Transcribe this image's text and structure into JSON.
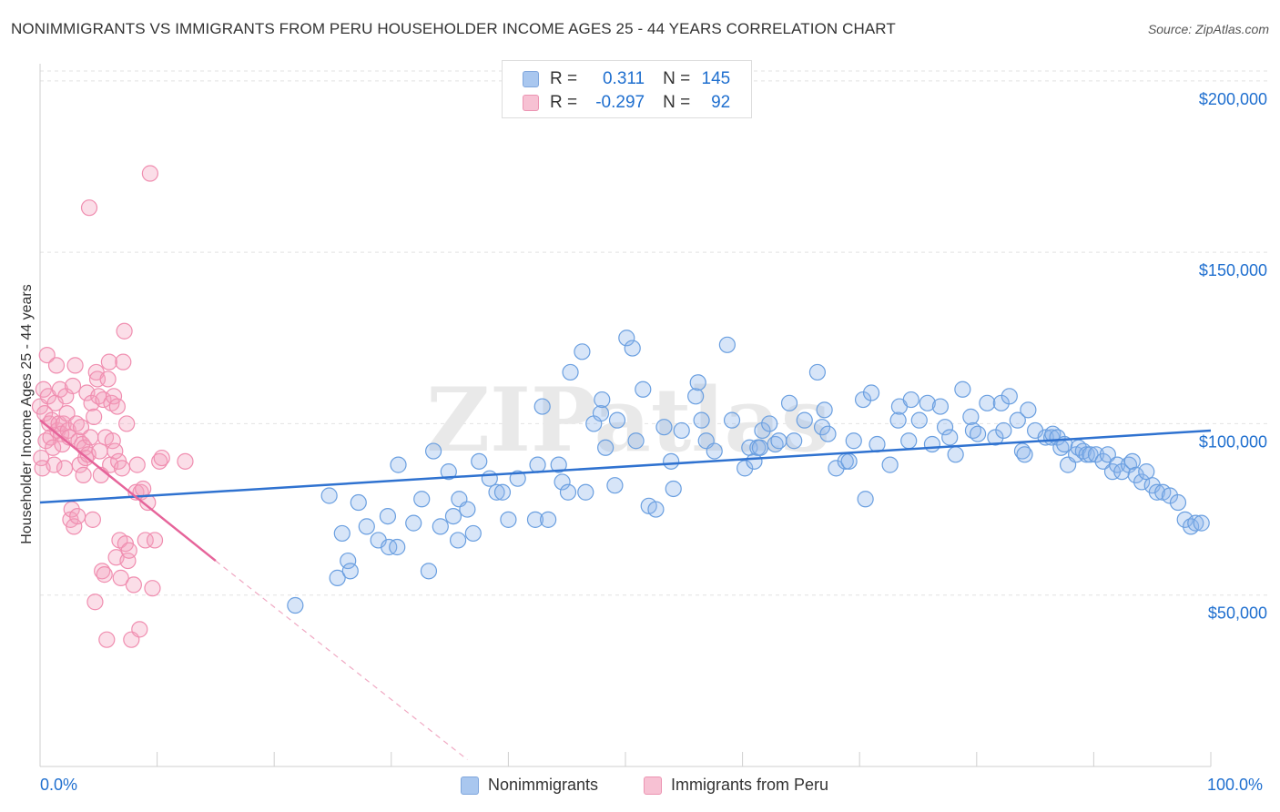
{
  "title": "NONIMMIGRANTS VS IMMIGRANTS FROM PERU HOUSEHOLDER INCOME AGES 25 - 44 YEARS CORRELATION CHART",
  "source": "Source: ZipAtlas.com",
  "watermark": "ZIPatlas",
  "colors": {
    "blue": "#6a9fe0",
    "blue_line": "#2f72d0",
    "pink": "#f08eb0",
    "pink_line": "#e6649a",
    "axis_text": "#1f6fcf"
  },
  "legend_top": {
    "rows": [
      {
        "r_label": "R =",
        "r_value": "0.311",
        "n_label": "N =",
        "n_value": "145"
      },
      {
        "r_label": "R =",
        "r_value": "-0.297",
        "n_label": "N =",
        "n_value": "92"
      }
    ]
  },
  "legend_bottom": {
    "items": [
      {
        "label": "Nonimmigrants"
      },
      {
        "label": "Immigrants from Peru"
      }
    ]
  },
  "x_tick_labels": {
    "left": "0.0%",
    "right": "100.0%"
  },
  "chart_data": {
    "type": "scatter",
    "title": "NONIMMIGRANTS VS IMMIGRANTS FROM PERU HOUSEHOLDER INCOME AGES 25 - 44 YEARS CORRELATION CHART",
    "xlabel": "",
    "ylabel": "Householder Income Ages 25 - 44 years",
    "xlim": [
      0,
      100
    ],
    "ylim": [
      0,
      205000
    ],
    "y_ticks": [
      {
        "value": 50000,
        "label": "$50,000"
      },
      {
        "value": 100000,
        "label": "$100,000"
      },
      {
        "value": 150000,
        "label": "$150,000"
      },
      {
        "value": 200000,
        "label": "$200,000"
      }
    ],
    "grid": true,
    "series": [
      {
        "name": "Nonimmigrants",
        "color": "#6a9fe0",
        "trend": {
          "x0": 0,
          "y0": 77000,
          "x1": 100,
          "y1": 98000
        },
        "points": [
          [
            21.8,
            47000
          ],
          [
            24.7,
            79000
          ],
          [
            25.4,
            55000
          ],
          [
            25.8,
            68000
          ],
          [
            26.3,
            60000
          ],
          [
            26.5,
            57000
          ],
          [
            27.2,
            77000
          ],
          [
            27.9,
            70000
          ],
          [
            28.9,
            66000
          ],
          [
            29.7,
            73000
          ],
          [
            29.8,
            64000
          ],
          [
            30.5,
            64000
          ],
          [
            30.6,
            88000
          ],
          [
            31.9,
            71000
          ],
          [
            32.6,
            78000
          ],
          [
            33.2,
            57000
          ],
          [
            33.6,
            92000
          ],
          [
            34.2,
            70000
          ],
          [
            34.9,
            86000
          ],
          [
            35.3,
            73000
          ],
          [
            35.7,
            66000
          ],
          [
            35.8,
            78000
          ],
          [
            36.5,
            75000
          ],
          [
            37.0,
            68000
          ],
          [
            37.5,
            89000
          ],
          [
            38.4,
            84000
          ],
          [
            39.0,
            80000
          ],
          [
            39.5,
            80000
          ],
          [
            40.0,
            72000
          ],
          [
            40.8,
            84000
          ],
          [
            42.3,
            72000
          ],
          [
            42.5,
            88000
          ],
          [
            42.9,
            105000
          ],
          [
            43.4,
            72000
          ],
          [
            44.3,
            88000
          ],
          [
            44.6,
            83000
          ],
          [
            45.1,
            80000
          ],
          [
            45.3,
            115000
          ],
          [
            46.3,
            121000
          ],
          [
            46.6,
            80000
          ],
          [
            47.3,
            100000
          ],
          [
            47.9,
            103000
          ],
          [
            48.0,
            107000
          ],
          [
            48.3,
            93000
          ],
          [
            49.1,
            82000
          ],
          [
            49.3,
            101000
          ],
          [
            50.1,
            125000
          ],
          [
            50.6,
            122000
          ],
          [
            50.9,
            95000
          ],
          [
            51.5,
            110000
          ],
          [
            52.0,
            76000
          ],
          [
            52.6,
            75000
          ],
          [
            53.3,
            99000
          ],
          [
            53.9,
            89000
          ],
          [
            54.1,
            81000
          ],
          [
            54.8,
            98000
          ],
          [
            56.0,
            108000
          ],
          [
            56.2,
            112000
          ],
          [
            56.5,
            101000
          ],
          [
            56.9,
            95000
          ],
          [
            57.6,
            92000
          ],
          [
            58.7,
            123000
          ],
          [
            59.1,
            101000
          ],
          [
            60.2,
            87000
          ],
          [
            60.6,
            93000
          ],
          [
            61.0,
            89000
          ],
          [
            61.3,
            93000
          ],
          [
            61.5,
            93000
          ],
          [
            61.7,
            98000
          ],
          [
            62.3,
            100000
          ],
          [
            62.8,
            94000
          ],
          [
            63.1,
            95000
          ],
          [
            64.0,
            106000
          ],
          [
            64.4,
            95000
          ],
          [
            65.3,
            101000
          ],
          [
            66.4,
            115000
          ],
          [
            66.8,
            99000
          ],
          [
            67.0,
            104000
          ],
          [
            67.3,
            97000
          ],
          [
            68.0,
            87000
          ],
          [
            68.8,
            89000
          ],
          [
            69.1,
            89000
          ],
          [
            69.5,
            95000
          ],
          [
            70.3,
            107000
          ],
          [
            70.5,
            78000
          ],
          [
            71.0,
            109000
          ],
          [
            71.5,
            94000
          ],
          [
            72.6,
            88000
          ],
          [
            73.3,
            101000
          ],
          [
            73.4,
            105000
          ],
          [
            74.2,
            95000
          ],
          [
            74.4,
            107000
          ],
          [
            75.1,
            101000
          ],
          [
            75.8,
            106000
          ],
          [
            76.2,
            94000
          ],
          [
            76.9,
            105000
          ],
          [
            77.3,
            99000
          ],
          [
            77.7,
            96000
          ],
          [
            78.2,
            91000
          ],
          [
            78.8,
            110000
          ],
          [
            79.5,
            102000
          ],
          [
            79.7,
            98000
          ],
          [
            80.1,
            97000
          ],
          [
            80.9,
            106000
          ],
          [
            81.6,
            96000
          ],
          [
            82.1,
            106000
          ],
          [
            82.3,
            98000
          ],
          [
            82.8,
            108000
          ],
          [
            83.5,
            101000
          ],
          [
            83.9,
            92000
          ],
          [
            84.1,
            91000
          ],
          [
            84.4,
            104000
          ],
          [
            85.0,
            98000
          ],
          [
            85.9,
            96000
          ],
          [
            86.4,
            96000
          ],
          [
            86.5,
            97000
          ],
          [
            86.9,
            96000
          ],
          [
            87.2,
            93000
          ],
          [
            87.5,
            94000
          ],
          [
            87.8,
            88000
          ],
          [
            88.5,
            91000
          ],
          [
            88.7,
            93000
          ],
          [
            89.1,
            92000
          ],
          [
            89.4,
            91000
          ],
          [
            89.7,
            91000
          ],
          [
            90.2,
            91000
          ],
          [
            90.8,
            89000
          ],
          [
            91.2,
            91000
          ],
          [
            91.6,
            86000
          ],
          [
            92.0,
            88000
          ],
          [
            92.4,
            86000
          ],
          [
            93.0,
            88000
          ],
          [
            93.3,
            89000
          ],
          [
            93.6,
            85000
          ],
          [
            94.1,
            83000
          ],
          [
            94.5,
            86000
          ],
          [
            95.0,
            82000
          ],
          [
            95.4,
            80000
          ],
          [
            95.9,
            80000
          ],
          [
            96.5,
            79000
          ],
          [
            97.2,
            77000
          ],
          [
            97.8,
            72000
          ],
          [
            98.3,
            70000
          ],
          [
            98.7,
            71000
          ],
          [
            99.2,
            71000
          ]
        ]
      },
      {
        "name": "Immigrants from Peru",
        "color": "#f08eb0",
        "trend": {
          "x0": 0,
          "y0": 101000,
          "x1": 15,
          "y1": 60000,
          "dash_x1": 36.5,
          "dash_y1": 2000
        },
        "points": [
          [
            0.0,
            105000
          ],
          [
            0.1,
            90000
          ],
          [
            0.2,
            87000
          ],
          [
            0.3,
            110000
          ],
          [
            0.4,
            103000
          ],
          [
            0.5,
            95000
          ],
          [
            0.6,
            120000
          ],
          [
            0.7,
            108000
          ],
          [
            0.8,
            100000
          ],
          [
            0.9,
            96000
          ],
          [
            1.0,
            101000
          ],
          [
            1.1,
            93000
          ],
          [
            1.2,
            88000
          ],
          [
            1.3,
            106000
          ],
          [
            1.4,
            117000
          ],
          [
            1.5,
            98000
          ],
          [
            1.6,
            100000
          ],
          [
            1.7,
            110000
          ],
          [
            1.8,
            97000
          ],
          [
            1.9,
            94000
          ],
          [
            2.0,
            100000
          ],
          [
            2.1,
            87000
          ],
          [
            2.2,
            108000
          ],
          [
            2.3,
            103000
          ],
          [
            2.4,
            98000
          ],
          [
            2.5,
            96000
          ],
          [
            2.6,
            72000
          ],
          [
            2.7,
            75000
          ],
          [
            2.8,
            111000
          ],
          [
            2.9,
            70000
          ],
          [
            3.0,
            117000
          ],
          [
            3.1,
            100000
          ],
          [
            3.2,
            73000
          ],
          [
            3.3,
            95000
          ],
          [
            3.4,
            88000
          ],
          [
            3.5,
            99000
          ],
          [
            3.6,
            94000
          ],
          [
            3.7,
            85000
          ],
          [
            3.8,
            93000
          ],
          [
            3.9,
            90000
          ],
          [
            4.0,
            109000
          ],
          [
            4.1,
            91000
          ],
          [
            4.2,
            163000
          ],
          [
            4.3,
            96000
          ],
          [
            4.4,
            106000
          ],
          [
            4.5,
            72000
          ],
          [
            4.6,
            102000
          ],
          [
            4.7,
            48000
          ],
          [
            4.8,
            115000
          ],
          [
            4.9,
            113000
          ],
          [
            5.0,
            108000
          ],
          [
            5.1,
            92000
          ],
          [
            5.2,
            85000
          ],
          [
            5.3,
            57000
          ],
          [
            5.4,
            107000
          ],
          [
            5.5,
            56000
          ],
          [
            5.6,
            96000
          ],
          [
            5.7,
            37000
          ],
          [
            5.8,
            113000
          ],
          [
            5.9,
            118000
          ],
          [
            6.0,
            88000
          ],
          [
            6.1,
            106000
          ],
          [
            6.2,
            95000
          ],
          [
            6.3,
            108000
          ],
          [
            6.4,
            92000
          ],
          [
            6.5,
            61000
          ],
          [
            6.6,
            105000
          ],
          [
            6.7,
            89000
          ],
          [
            6.8,
            66000
          ],
          [
            6.9,
            55000
          ],
          [
            7.0,
            87000
          ],
          [
            7.1,
            118000
          ],
          [
            7.2,
            127000
          ],
          [
            7.3,
            65000
          ],
          [
            7.4,
            100000
          ],
          [
            7.5,
            60000
          ],
          [
            7.6,
            63000
          ],
          [
            7.8,
            37000
          ],
          [
            8.0,
            53000
          ],
          [
            8.2,
            80000
          ],
          [
            8.3,
            88000
          ],
          [
            8.5,
            40000
          ],
          [
            8.6,
            80000
          ],
          [
            8.8,
            81000
          ],
          [
            9.0,
            66000
          ],
          [
            9.2,
            77000
          ],
          [
            9.4,
            173000
          ],
          [
            9.6,
            52000
          ],
          [
            9.8,
            66000
          ],
          [
            10.2,
            89000
          ],
          [
            10.4,
            90000
          ],
          [
            12.4,
            89000
          ]
        ]
      }
    ]
  }
}
